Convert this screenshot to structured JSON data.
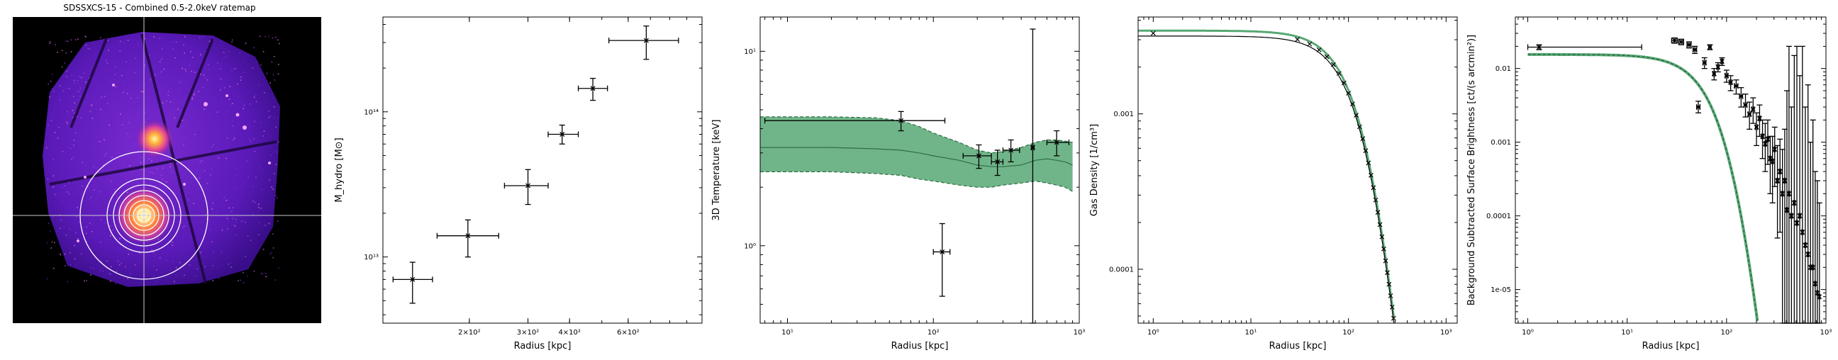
{
  "colors": {
    "band_fill": "#57a874",
    "band_edge": "#2f6e45",
    "axis": "#000000",
    "ratemap_bg": "#000000",
    "ratemap_low": "#3a0e8a",
    "ratemap_mid": "#b23cc8",
    "ratemap_high": "#ffcc44"
  },
  "ratemap": {
    "title": "SDSSXCS-15 - Combined 0.5-2.0keV ratemap",
    "crosshair": true,
    "annuli_count": 8
  },
  "chart_data": [
    {
      "type": "scatter",
      "xlabel": "Radius [kpc]",
      "ylabel": "M_hydro [M⊙]",
      "xscale": "log",
      "yscale": "log",
      "xlim": [
        110,
        1000
      ],
      "ylim": [
        3500000000000.0,
        450000000000000.0
      ],
      "xticks": [
        {
          "v": 200,
          "label": "2×10²"
        },
        {
          "v": 300,
          "label": "3×10²"
        },
        {
          "v": 400,
          "label": "4×10²"
        },
        {
          "v": 600,
          "label": "6×10²"
        }
      ],
      "yticks": [
        {
          "v": 10000000000000.0,
          "label": "10¹³"
        },
        {
          "v": 100000000000000.0,
          "label": "10¹⁴"
        }
      ],
      "points": [
        {
          "x": 135,
          "xlo": 118,
          "xhi": 155,
          "y": 7000000000000.0,
          "ylo": 4800000000000.0,
          "yhi": 9200000000000.0
        },
        {
          "x": 198,
          "xlo": 160,
          "xhi": 245,
          "y": 14000000000000.0,
          "ylo": 10000000000000.0,
          "yhi": 18000000000000.0
        },
        {
          "x": 300,
          "xlo": 255,
          "xhi": 345,
          "y": 31000000000000.0,
          "ylo": 23000000000000.0,
          "yhi": 40000000000000.0
        },
        {
          "x": 380,
          "xlo": 345,
          "xhi": 425,
          "y": 70000000000000.0,
          "ylo": 60000000000000.0,
          "yhi": 81000000000000.0
        },
        {
          "x": 470,
          "xlo": 425,
          "xhi": 520,
          "y": 145000000000000.0,
          "ylo": 120000000000000.0,
          "yhi": 170000000000000.0
        },
        {
          "x": 680,
          "xlo": 525,
          "xhi": 850,
          "y": 310000000000000.0,
          "ylo": 230000000000000.0,
          "yhi": 390000000000000.0
        }
      ]
    },
    {
      "type": "scatter",
      "xlabel": "Radius [kpc]",
      "ylabel": "3D Temperature [keV]",
      "xscale": "log",
      "yscale": "log",
      "xlim": [
        6.5,
        1000
      ],
      "ylim": [
        0.4,
        15
      ],
      "xticks": [
        {
          "v": 10,
          "label": "10¹"
        },
        {
          "v": 100,
          "label": "10²"
        },
        {
          "v": 1000,
          "label": "10³"
        }
      ],
      "yticks": [
        {
          "v": 1,
          "label": "10⁰"
        },
        {
          "v": 10,
          "label": "10¹"
        }
      ],
      "band": {
        "x": [
          6.5,
          10,
          20,
          40,
          60,
          80,
          100,
          150,
          200,
          250,
          300,
          400,
          500,
          600,
          700,
          800,
          900
        ],
        "lower": [
          2.4,
          2.4,
          2.4,
          2.35,
          2.3,
          2.2,
          2.15,
          2.05,
          2.0,
          2.0,
          2.05,
          2.1,
          2.15,
          2.1,
          2.05,
          2.0,
          1.9
        ],
        "upper": [
          4.6,
          4.6,
          4.6,
          4.55,
          4.4,
          4.1,
          3.8,
          3.4,
          3.1,
          3.0,
          3.05,
          3.2,
          3.4,
          3.5,
          3.5,
          3.45,
          3.4
        ],
        "median": [
          3.2,
          3.2,
          3.2,
          3.15,
          3.1,
          3.0,
          2.9,
          2.75,
          2.6,
          2.55,
          2.55,
          2.6,
          2.75,
          2.8,
          2.75,
          2.7,
          2.6
        ]
      },
      "points": [
        {
          "x": 60,
          "xlo": 7,
          "xhi": 120,
          "y": 4.4,
          "ylo": 3.9,
          "yhi": 4.9
        },
        {
          "x": 115,
          "xlo": 100,
          "xhi": 130,
          "y": 0.93,
          "ylo": 0.55,
          "yhi": 1.3
        },
        {
          "x": 205,
          "xlo": 160,
          "xhi": 250,
          "y": 2.9,
          "ylo": 2.5,
          "yhi": 3.3
        },
        {
          "x": 275,
          "xlo": 250,
          "xhi": 300,
          "y": 2.7,
          "ylo": 2.3,
          "yhi": 3.1
        },
        {
          "x": 340,
          "xlo": 300,
          "xhi": 390,
          "y": 3.1,
          "ylo": 2.7,
          "yhi": 3.5
        },
        {
          "x": 480,
          "xlo": 470,
          "xhi": 490,
          "y": 3.2,
          "ylo": 0.4,
          "yhi": 13
        },
        {
          "x": 700,
          "xlo": 600,
          "xhi": 850,
          "y": 3.4,
          "ylo": 2.9,
          "yhi": 3.9
        }
      ]
    },
    {
      "type": "line",
      "xlabel": "Radius [kpc]",
      "ylabel": "Gas Density [1/cm³]",
      "xscale": "log",
      "yscale": "log",
      "xlim": [
        0.7,
        1300
      ],
      "ylim": [
        4.5e-05,
        0.0042
      ],
      "xticks": [
        {
          "v": 1,
          "label": "10⁰"
        },
        {
          "v": 10,
          "label": "10¹"
        },
        {
          "v": 100,
          "label": "10²"
        },
        {
          "v": 1000,
          "label": "10³"
        }
      ],
      "yticks": [
        {
          "v": 0.0001,
          "label": "0.0001"
        },
        {
          "v": 0.001,
          "label": "0.001"
        }
      ],
      "curve": {
        "n0": 0.0033,
        "rc": 180,
        "beta": 2.2
      },
      "points_r": [
        1,
        30,
        40,
        50,
        60,
        70,
        80,
        90,
        100,
        110,
        120,
        130,
        140,
        150,
        160,
        170,
        180,
        190,
        200,
        210,
        220,
        230,
        240,
        250,
        260,
        270,
        280,
        290,
        300,
        320,
        340,
        360,
        380,
        400,
        420,
        440,
        460,
        480,
        500,
        520,
        540,
        560,
        580,
        600,
        620,
        640,
        660,
        680,
        700,
        720,
        740,
        760,
        780,
        800,
        820,
        840
      ]
    },
    {
      "type": "scatter",
      "xlabel": "Radius [kpc]",
      "ylabel": "Background Subtracted Surface Brightness [ct/(s arcmin²)]",
      "xscale": "log",
      "yscale": "log",
      "xlim": [
        0.75,
        1000
      ],
      "ylim": [
        3.5e-06,
        0.05
      ],
      "xticks": [
        {
          "v": 1,
          "label": "10⁰"
        },
        {
          "v": 10,
          "label": "10¹"
        },
        {
          "v": 100,
          "label": "10²"
        },
        {
          "v": 1000,
          "label": "10³"
        }
      ],
      "yticks": [
        {
          "v": 1e-05,
          "label": "1e-05"
        },
        {
          "v": 0.0001,
          "label": "0.0001"
        },
        {
          "v": 0.001,
          "label": "0.001"
        },
        {
          "v": 0.01,
          "label": "0.01"
        }
      ],
      "model": {
        "s0": 0.0155,
        "rc": 140,
        "beta": 2.6
      },
      "points": [
        {
          "x": 1.3,
          "xlo": 1.0,
          "xhi": 14,
          "y": 0.0195,
          "ylo": 0.018,
          "yhi": 0.021
        },
        {
          "x": 30,
          "xlo": 28,
          "xhi": 32,
          "y": 0.024,
          "ylo": 0.022,
          "yhi": 0.026
        },
        {
          "x": 35,
          "xlo": 33,
          "xhi": 37,
          "y": 0.023,
          "ylo": 0.021,
          "yhi": 0.025
        },
        {
          "x": 42,
          "xlo": 40,
          "xhi": 44,
          "y": 0.021,
          "ylo": 0.019,
          "yhi": 0.023
        },
        {
          "x": 48,
          "xlo": 46,
          "xhi": 50,
          "y": 0.018,
          "ylo": 0.016,
          "yhi": 0.02
        },
        {
          "x": 52,
          "xlo": 50,
          "xhi": 54,
          "y": 0.003,
          "ylo": 0.0025,
          "yhi": 0.0036
        },
        {
          "x": 60,
          "xlo": 58,
          "xhi": 62,
          "y": 0.012,
          "ylo": 0.01,
          "yhi": 0.014
        },
        {
          "x": 68,
          "xlo": 66,
          "xhi": 70,
          "y": 0.0195,
          "ylo": 0.018,
          "yhi": 0.021
        },
        {
          "x": 75,
          "xlo": 73,
          "xhi": 77,
          "y": 0.0085,
          "ylo": 0.007,
          "yhi": 0.01
        },
        {
          "x": 82,
          "xlo": 80,
          "xhi": 84,
          "y": 0.0105,
          "ylo": 0.009,
          "yhi": 0.012
        },
        {
          "x": 90,
          "xlo": 88,
          "xhi": 92,
          "y": 0.0125,
          "ylo": 0.011,
          "yhi": 0.014
        },
        {
          "x": 100,
          "xlo": 97,
          "xhi": 103,
          "y": 0.008,
          "ylo": 0.0065,
          "yhi": 0.0095
        },
        {
          "x": 110,
          "xlo": 107,
          "xhi": 113,
          "y": 0.0065,
          "ylo": 0.005,
          "yhi": 0.008
        },
        {
          "x": 125,
          "xlo": 120,
          "xhi": 130,
          "y": 0.0058,
          "ylo": 0.0045,
          "yhi": 0.007
        },
        {
          "x": 140,
          "xlo": 135,
          "xhi": 145,
          "y": 0.0042,
          "ylo": 0.003,
          "yhi": 0.0055
        },
        {
          "x": 155,
          "xlo": 150,
          "xhi": 160,
          "y": 0.0032,
          "ylo": 0.0022,
          "yhi": 0.0045
        },
        {
          "x": 170,
          "xlo": 165,
          "xhi": 175,
          "y": 0.0024,
          "ylo": 0.0015,
          "yhi": 0.0035
        },
        {
          "x": 185,
          "xlo": 180,
          "xhi": 190,
          "y": 0.0028,
          "ylo": 0.0018,
          "yhi": 0.004
        },
        {
          "x": 200,
          "xlo": 195,
          "xhi": 205,
          "y": 0.0016,
          "ylo": 0.0009,
          "yhi": 0.0025
        },
        {
          "x": 215,
          "xlo": 210,
          "xhi": 220,
          "y": 0.0021,
          "ylo": 0.0012,
          "yhi": 0.0032
        },
        {
          "x": 230,
          "xlo": 225,
          "xhi": 235,
          "y": 0.0012,
          "ylo": 0.0006,
          "yhi": 0.002
        },
        {
          "x": 245,
          "xlo": 240,
          "xhi": 250,
          "y": 0.00095,
          "ylo": 0.0004,
          "yhi": 0.0018
        },
        {
          "x": 260,
          "xlo": 255,
          "xhi": 265,
          "y": 0.0011,
          "ylo": 0.0005,
          "yhi": 0.002
        },
        {
          "x": 275,
          "xlo": 270,
          "xhi": 280,
          "y": 0.0006,
          "ylo": 0.0002,
          "yhi": 0.0012
        },
        {
          "x": 290,
          "xlo": 285,
          "xhi": 295,
          "y": 0.00055,
          "ylo": 0.00015,
          "yhi": 0.0012
        },
        {
          "x": 305,
          "xlo": 300,
          "xhi": 310,
          "y": 0.0008,
          "ylo": 0.00025,
          "yhi": 0.0016
        },
        {
          "x": 325,
          "xlo": 318,
          "xhi": 332,
          "y": 0.0003,
          "ylo": 5e-05,
          "yhi": 0.0009
        },
        {
          "x": 345,
          "xlo": 338,
          "xhi": 352,
          "y": 0.0004,
          "ylo": 6e-05,
          "yhi": 0.0011
        },
        {
          "x": 365,
          "xlo": 358,
          "xhi": 372,
          "y": 0.0002,
          "ylo": 3.5e-06,
          "yhi": 0.0008
        },
        {
          "x": 385,
          "xlo": 378,
          "xhi": 392,
          "y": 0.0003,
          "ylo": 3.5e-06,
          "yhi": 0.0015
        },
        {
          "x": 405,
          "xlo": 398,
          "xhi": 412,
          "y": 0.00012,
          "ylo": 3.5e-06,
          "yhi": 0.005
        },
        {
          "x": 425,
          "xlo": 418,
          "xhi": 432,
          "y": 0.0002,
          "ylo": 3.5e-06,
          "yhi": 0.02
        },
        {
          "x": 450,
          "xlo": 440,
          "xhi": 460,
          "y": 0.0001,
          "ylo": 3.5e-06,
          "yhi": 0.003
        },
        {
          "x": 480,
          "xlo": 470,
          "xhi": 490,
          "y": 0.00015,
          "ylo": 3.5e-06,
          "yhi": 0.015
        },
        {
          "x": 510,
          "xlo": 500,
          "xhi": 520,
          "y": 8e-05,
          "ylo": 3.5e-06,
          "yhi": 0.02
        },
        {
          "x": 545,
          "xlo": 535,
          "xhi": 555,
          "y": 0.0001,
          "ylo": 3.5e-06,
          "yhi": 0.008
        },
        {
          "x": 580,
          "xlo": 570,
          "xhi": 590,
          "y": 6e-05,
          "ylo": 3.5e-06,
          "yhi": 0.02
        },
        {
          "x": 620,
          "xlo": 610,
          "xhi": 630,
          "y": 4e-05,
          "ylo": 3.5e-06,
          "yhi": 0.003
        },
        {
          "x": 660,
          "xlo": 650,
          "xhi": 670,
          "y": 3e-05,
          "ylo": 3.5e-06,
          "yhi": 0.006
        },
        {
          "x": 700,
          "xlo": 690,
          "xhi": 710,
          "y": 2e-05,
          "ylo": 3.5e-06,
          "yhi": 0.001
        },
        {
          "x": 740,
          "xlo": 730,
          "xhi": 750,
          "y": 2e-05,
          "ylo": 3.5e-06,
          "yhi": 0.002
        },
        {
          "x": 780,
          "xlo": 770,
          "xhi": 790,
          "y": 1.2e-05,
          "ylo": 3.5e-06,
          "yhi": 0.0004
        },
        {
          "x": 820,
          "xlo": 810,
          "xhi": 830,
          "y": 9e-06,
          "ylo": 3.5e-06,
          "yhi": 0.0003
        },
        {
          "x": 860,
          "xlo": 850,
          "xhi": 870,
          "y": 8e-06,
          "ylo": 3.5e-06,
          "yhi": 0.00015
        }
      ]
    }
  ]
}
